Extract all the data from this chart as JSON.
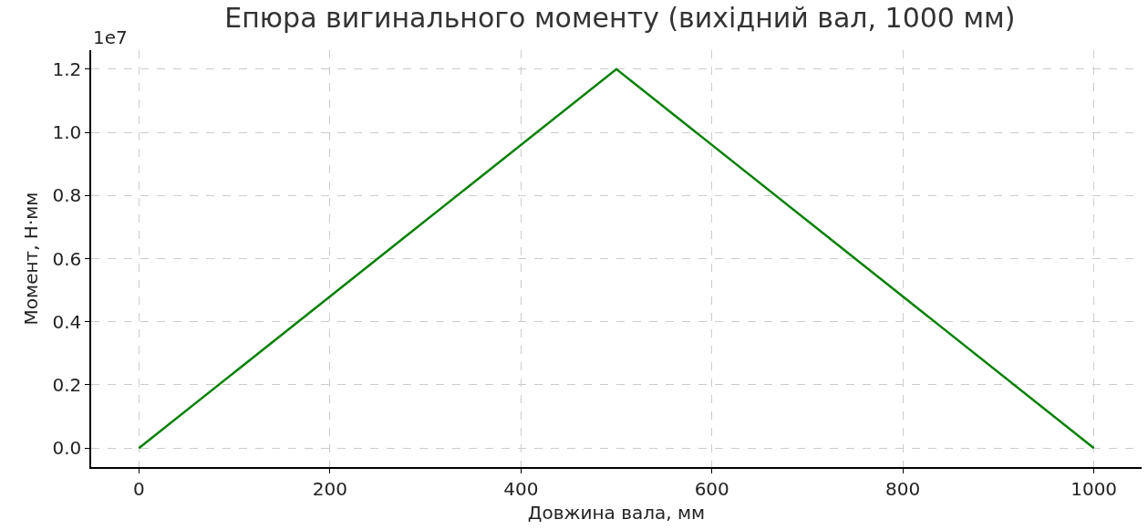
{
  "chart_data": {
    "type": "line",
    "title": "Епюра вигинального моменту (вихідний вал, 1000 мм)",
    "xlabel": "Довжина вала, мм",
    "ylabel": "Момент, Н·мм",
    "x": [
      0,
      500,
      1000
    ],
    "series": [
      {
        "color": "#008000",
        "values": [
          0,
          1.2,
          0
        ]
      }
    ],
    "xlim": [
      -50,
      1050
    ],
    "xticks": [
      0,
      200,
      400,
      600,
      800,
      1000
    ],
    "ylim": [
      -0.06,
      1.26
    ],
    "yticks": [
      {
        "value": 0,
        "label": "0.0"
      },
      0.2,
      0.4,
      0.6,
      0.8,
      {
        "value": 1,
        "label": "1.0"
      },
      1.2
    ],
    "annotations": [
      "1e7"
    ],
    "grid": true,
    "line_style": "solid",
    "marker": "none"
  }
}
